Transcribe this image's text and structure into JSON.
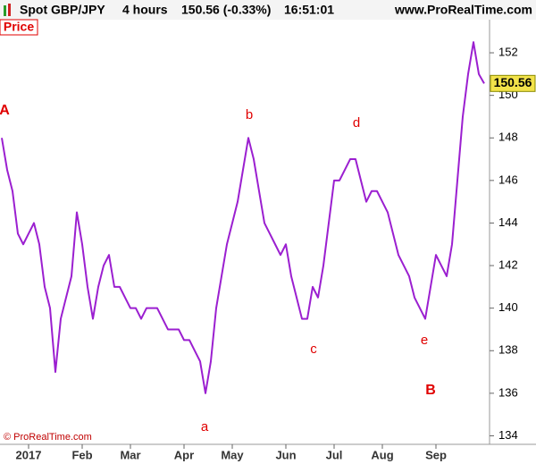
{
  "header": {
    "symbol": "Spot GBP/JPY",
    "interval": "4 hours",
    "quote": "150.56 (-0.33%)",
    "time": "16:51:01",
    "site": "www.ProRealTime.com"
  },
  "chart_data": {
    "type": "line",
    "panel_label": "Price",
    "copyright": "© ProRealTime.com",
    "last_price": 150.56,
    "color": "#9b1fd0",
    "categories": [
      null,
      null,
      null,
      null,
      null,
      "2017",
      null,
      null,
      null,
      null,
      null,
      null,
      null,
      null,
      null,
      "Feb",
      null,
      null,
      null,
      null,
      null,
      null,
      null,
      null,
      "Mar",
      null,
      null,
      null,
      null,
      null,
      null,
      null,
      null,
      null,
      "Apr",
      null,
      null,
      null,
      null,
      null,
      null,
      null,
      null,
      "May",
      null,
      null,
      null,
      null,
      null,
      null,
      null,
      null,
      null,
      "Jun",
      null,
      null,
      null,
      null,
      null,
      null,
      null,
      null,
      "Jul",
      null,
      null,
      null,
      null,
      null,
      null,
      null,
      null,
      "Aug",
      null,
      null,
      null,
      null,
      null,
      null,
      null,
      null,
      null,
      "Sep",
      null,
      null,
      null,
      null,
      null,
      null,
      null,
      null,
      null
    ],
    "values": [
      148,
      146.5,
      145.5,
      143.5,
      143,
      143.5,
      144,
      143,
      141,
      140,
      137,
      139.5,
      140.5,
      141.5,
      144.5,
      143,
      141,
      139.5,
      141,
      142,
      142.5,
      141,
      141,
      140.5,
      140,
      140,
      139.5,
      140,
      140,
      140,
      139.5,
      139,
      139,
      139,
      138.5,
      138.5,
      138,
      137.5,
      136,
      137.5,
      140,
      141.5,
      143,
      144,
      145,
      146.5,
      148,
      147,
      145.5,
      144,
      143.5,
      143,
      142.5,
      143,
      141.5,
      140.5,
      139.5,
      139.5,
      141,
      140.5,
      142,
      144,
      146,
      146,
      146.5,
      147,
      147,
      146,
      145,
      145.5,
      145.5,
      145,
      144.5,
      143.5,
      142.5,
      142,
      141.5,
      140.5,
      140,
      139.5,
      141,
      142.5,
      142,
      141.5,
      143,
      146,
      149,
      151,
      152.5,
      151,
      150.56
    ],
    "ylim": [
      133.6,
      152.8
    ],
    "yticks": [
      134,
      136,
      138,
      140,
      142,
      144,
      146,
      148,
      150,
      152
    ],
    "annotations": [
      "A",
      "a",
      "b",
      "c",
      "d",
      "e",
      "B"
    ]
  }
}
